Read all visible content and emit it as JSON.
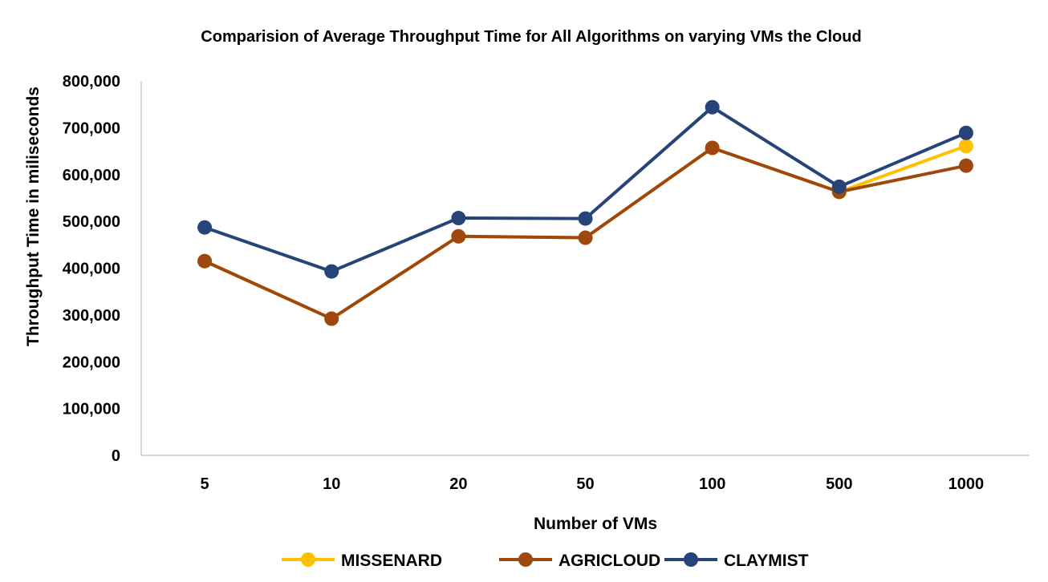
{
  "chart_data": {
    "type": "line",
    "title": "Comparision of Average Throughput Time for All Algorithms on varying  VMs the Cloud",
    "xlabel": "Number of VMs",
    "ylabel": "Throughput Time in miliseconds",
    "categories": [
      "5",
      "10",
      "20",
      "50",
      "100",
      "500",
      "1000"
    ],
    "ylim": [
      0,
      800000
    ],
    "yticks": [
      0,
      100000,
      200000,
      300000,
      400000,
      500000,
      600000,
      700000,
      800000
    ],
    "ytick_labels": [
      "0",
      "100,000",
      "200,000",
      "300,000",
      "400,000",
      "500,000",
      "600,000",
      "700,000",
      "800,000"
    ],
    "grid": false,
    "legend_position": "bottom",
    "series": [
      {
        "name": "MISSENARD",
        "color": "#FFC000",
        "values": [
          415000,
          292000,
          468000,
          465000,
          657000,
          563000,
          661000
        ]
      },
      {
        "name": "AGRICLOUD",
        "color": "#9E480E",
        "values": [
          415000,
          292000,
          468000,
          465000,
          657000,
          563000,
          619000
        ]
      },
      {
        "name": "CLAYMIST",
        "color": "#264478",
        "values": [
          487000,
          393000,
          507000,
          506000,
          744000,
          574000,
          689000
        ]
      }
    ]
  }
}
